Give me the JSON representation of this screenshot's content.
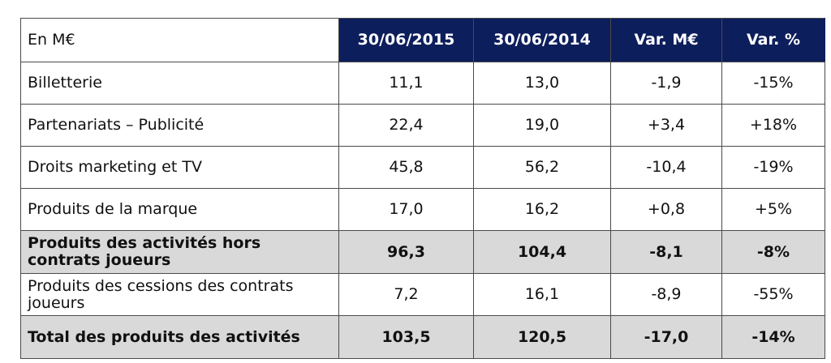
{
  "table": {
    "corner_label": "En M€",
    "headers": [
      "30/06/2015",
      "30/06/2014",
      "Var. M€",
      "Var. %"
    ],
    "rows": [
      {
        "label": "Billetterie",
        "values": [
          "11,1",
          "13,0",
          "-1,9",
          "-15%"
        ],
        "bold": false
      },
      {
        "label": "Partenariats – Publicité",
        "values": [
          "22,4",
          "19,0",
          "+3,4",
          "+18%"
        ],
        "bold": false
      },
      {
        "label": "Droits marketing et TV",
        "values": [
          "45,8",
          "56,2",
          "-10,4",
          "-19%"
        ],
        "bold": false
      },
      {
        "label": "Produits de la marque",
        "values": [
          "17,0",
          "16,2",
          "+0,8",
          "+5%"
        ],
        "bold": false
      },
      {
        "label": "Produits des activités hors contrats joueurs",
        "values": [
          "96,3",
          "104,4",
          "-8,1",
          "-8%"
        ],
        "bold": true
      },
      {
        "label": "Produits des cessions des contrats joueurs",
        "values": [
          "7,2",
          "16,1",
          "-8,9",
          "-55%"
        ],
        "bold": false
      },
      {
        "label": "Total des produits des activités",
        "values": [
          "103,5",
          "120,5",
          "-17,0",
          "-14%"
        ],
        "bold": true
      }
    ]
  },
  "colors": {
    "header_bg": "#0d1e5c",
    "header_text": "#ffffff",
    "subtotal_bg": "#d9d9d9",
    "border": "#4a4a4a"
  }
}
